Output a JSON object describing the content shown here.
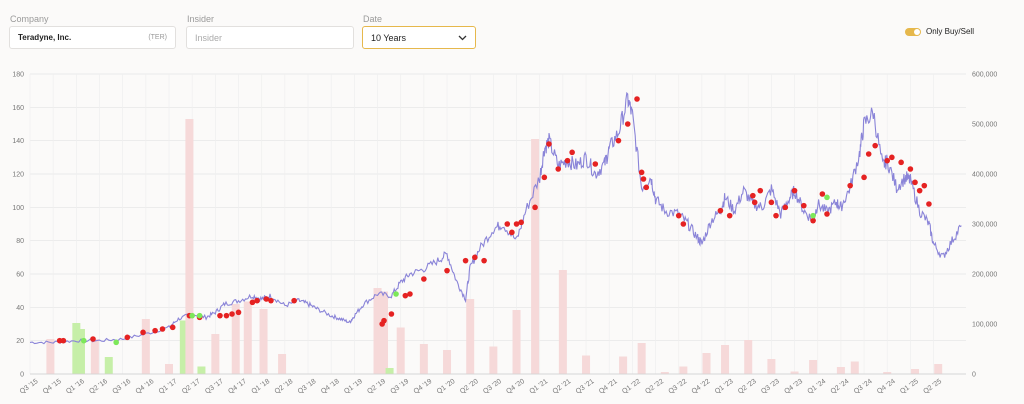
{
  "filters": {
    "company_label": "Company",
    "company_value": "Teradyne, Inc.",
    "company_ticker": "(TER)",
    "insider_label": "Insider",
    "insider_placeholder": "Insider",
    "date_label": "Date",
    "date_value": "10 Years",
    "toggle_label": "Only Buy/Sell",
    "toggle_on": true
  },
  "colors": {
    "price_line": "#8a84d8",
    "sell_marker": "#e52222",
    "buy_marker": "#7de85a",
    "sell_bar": "#f6d9d9",
    "buy_bar": "#c6efa8",
    "accent": "#e6b84c"
  },
  "chart_data": {
    "type": "line",
    "x_ticks": [
      "Q3 '15",
      "Q4 '15",
      "Q1 '16",
      "Q2 '16",
      "Q3 '16",
      "Q4 '16",
      "Q1 '17",
      "Q2 '17",
      "Q3 '17",
      "Q4 '17",
      "Q1 '18",
      "Q2 '18",
      "Q3 '18",
      "Q4 '18",
      "Q1 '19",
      "Q2 '19",
      "Q3 '19",
      "Q4 '19",
      "Q1 '20",
      "Q2 '20",
      "Q3 '20",
      "Q4 '20",
      "Q1 '21",
      "Q2 '21",
      "Q3 '21",
      "Q4 '21",
      "Q1 '22",
      "Q2 '22",
      "Q3 '22",
      "Q4 '22",
      "Q1 '23",
      "Q2 '23",
      "Q3 '23",
      "Q4 '23",
      "Q1 '24",
      "Q2 '24",
      "Q3 '24",
      "Q4 '24",
      "Q1 '25",
      "Q2 '25"
    ],
    "y_left_ticks": [
      0,
      20,
      40,
      60,
      80,
      100,
      120,
      140,
      160,
      180
    ],
    "y_left_range": [
      0,
      180
    ],
    "y_right_ticks": [
      "0",
      "100,000",
      "200,000",
      "300,000",
      "400,000",
      "500,000",
      "600,000"
    ],
    "y_right_range": [
      0,
      600000
    ],
    "grid": true,
    "price_series": {
      "x": [
        2015.5,
        2015.75,
        2016.0,
        2016.25,
        2016.5,
        2016.75,
        2017.0,
        2017.1,
        2017.25,
        2017.4,
        2017.5,
        2017.6,
        2017.75,
        2017.9,
        2018.0,
        2018.1,
        2018.25,
        2018.4,
        2018.5,
        2018.6,
        2018.75,
        2018.85,
        2018.95,
        2019.0,
        2019.1,
        2019.25,
        2019.4,
        2019.5,
        2019.6,
        2019.75,
        2019.9,
        2020.0,
        2020.1,
        2020.2,
        2020.25,
        2020.35,
        2020.5,
        2020.6,
        2020.75,
        2020.85,
        2021.0,
        2021.05,
        2021.1,
        2021.2,
        2021.3,
        2021.4,
        2021.5,
        2021.6,
        2021.7,
        2021.75,
        2021.85,
        2021.95,
        2022.0,
        2022.1,
        2022.2,
        2022.25,
        2022.35,
        2022.5,
        2022.6,
        2022.7,
        2022.75,
        2022.85,
        2022.95,
        2023.0,
        2023.1,
        2023.2,
        2023.3,
        2023.4,
        2023.5,
        2023.6,
        2023.7,
        2023.75,
        2023.85,
        2023.95,
        2024.0,
        2024.1,
        2024.2,
        2024.25,
        2024.35,
        2024.45,
        2024.5,
        2024.6,
        2024.7,
        2024.75,
        2024.85,
        2024.95,
        2025.0,
        2025.1,
        2025.2,
        2025.25,
        2025.35,
        2025.45,
        2025.55
      ],
      "y": [
        19,
        19,
        20,
        20,
        21,
        24,
        28,
        33,
        36,
        34,
        37,
        42,
        44,
        47,
        45,
        47,
        41,
        44,
        42,
        39,
        35,
        33,
        31,
        35,
        42,
        48,
        47,
        55,
        60,
        63,
        68,
        72,
        56,
        45,
        64,
        75,
        87,
        90,
        80,
        98,
        118,
        135,
        140,
        125,
        128,
        125,
        130,
        120,
        126,
        135,
        145,
        165,
        155,
        112,
        118,
        105,
        98,
        96,
        90,
        82,
        78,
        92,
        98,
        106,
        98,
        110,
        102,
        100,
        111,
        96,
        106,
        110,
        98,
        92,
        102,
        97,
        103,
        100,
        112,
        132,
        150,
        157,
        125,
        128,
        112,
        118,
        116,
        98,
        90,
        78,
        70,
        80,
        89
      ]
    },
    "sell_points": {
      "x": [
        2015.82,
        2015.86,
        2016.18,
        2016.55,
        2016.72,
        2016.85,
        2016.93,
        2017.04,
        2017.22,
        2017.33,
        2017.55,
        2017.62,
        2017.68,
        2017.75,
        2017.9,
        2017.95,
        2018.05,
        2018.1,
        2018.35,
        2019.3,
        2019.32,
        2019.4,
        2019.55,
        2019.6,
        2019.75,
        2020.0,
        2020.2,
        2020.3,
        2020.4,
        2020.65,
        2020.7,
        2020.75,
        2020.8,
        2020.95,
        2021.05,
        2021.1,
        2021.2,
        2021.3,
        2021.35,
        2021.6,
        2021.85,
        2021.95,
        2022.05,
        2022.1,
        2022.12,
        2022.15,
        2022.5,
        2022.55,
        2022.95,
        2023.05,
        2023.3,
        2023.32,
        2023.38,
        2023.5,
        2023.55,
        2023.65,
        2023.75,
        2023.85,
        2023.95,
        2024.05,
        2024.1,
        2024.35,
        2024.5,
        2024.55,
        2024.62,
        2024.75,
        2024.8,
        2024.9,
        2025.0,
        2025.05,
        2025.1,
        2025.15,
        2025.2
      ],
      "y": [
        20,
        20,
        21,
        22,
        25,
        26,
        27,
        28,
        35,
        34,
        35,
        35,
        36,
        37,
        43,
        44,
        45,
        44,
        44,
        30,
        32,
        36,
        47,
        48,
        57,
        62,
        68,
        70,
        68,
        90,
        85,
        90,
        91,
        100,
        118,
        138,
        123,
        128,
        133,
        126,
        140,
        150,
        165,
        121,
        117,
        112,
        95,
        90,
        98,
        95,
        107,
        103,
        110,
        103,
        95,
        100,
        110,
        101,
        92,
        108,
        96,
        113,
        118,
        132,
        137,
        128,
        130,
        127,
        123,
        115,
        110,
        113,
        102
      ]
    },
    "buy_points": {
      "x": [
        2016.08,
        2016.43,
        2017.25,
        2017.33,
        2019.45,
        2023.95,
        2024.1
      ],
      "y": [
        20,
        19,
        35,
        35,
        48,
        95,
        106
      ]
    },
    "volume_bars": [
      {
        "x": 2015.72,
        "v": 70000,
        "kind": "sell"
      },
      {
        "x": 2016.0,
        "v": 102000,
        "kind": "buy"
      },
      {
        "x": 2016.05,
        "v": 90000,
        "kind": "buy"
      },
      {
        "x": 2016.2,
        "v": 70000,
        "kind": "sell"
      },
      {
        "x": 2016.35,
        "v": 34000,
        "kind": "buy"
      },
      {
        "x": 2016.75,
        "v": 110000,
        "kind": "sell"
      },
      {
        "x": 2017.0,
        "v": 20000,
        "kind": "sell"
      },
      {
        "x": 2017.16,
        "v": 107000,
        "kind": "buy"
      },
      {
        "x": 2017.22,
        "v": 510000,
        "kind": "sell"
      },
      {
        "x": 2017.35,
        "v": 15000,
        "kind": "buy"
      },
      {
        "x": 2017.5,
        "v": 80000,
        "kind": "sell"
      },
      {
        "x": 2017.72,
        "v": 140000,
        "kind": "sell"
      },
      {
        "x": 2017.85,
        "v": 145000,
        "kind": "sell"
      },
      {
        "x": 2018.02,
        "v": 130000,
        "kind": "sell"
      },
      {
        "x": 2018.22,
        "v": 40000,
        "kind": "sell"
      },
      {
        "x": 2019.25,
        "v": 172000,
        "kind": "sell"
      },
      {
        "x": 2019.32,
        "v": 165000,
        "kind": "sell"
      },
      {
        "x": 2019.38,
        "v": 12000,
        "kind": "buy"
      },
      {
        "x": 2019.5,
        "v": 93000,
        "kind": "sell"
      },
      {
        "x": 2019.75,
        "v": 60000,
        "kind": "sell"
      },
      {
        "x": 2020.0,
        "v": 48000,
        "kind": "sell"
      },
      {
        "x": 2020.25,
        "v": 150000,
        "kind": "sell"
      },
      {
        "x": 2020.5,
        "v": 55000,
        "kind": "sell"
      },
      {
        "x": 2020.75,
        "v": 128000,
        "kind": "sell"
      },
      {
        "x": 2020.95,
        "v": 470000,
        "kind": "sell"
      },
      {
        "x": 2021.25,
        "v": 208000,
        "kind": "sell"
      },
      {
        "x": 2021.5,
        "v": 37000,
        "kind": "sell"
      },
      {
        "x": 2021.9,
        "v": 35000,
        "kind": "sell"
      },
      {
        "x": 2022.1,
        "v": 62000,
        "kind": "sell"
      },
      {
        "x": 2022.35,
        "v": 4000,
        "kind": "sell"
      },
      {
        "x": 2022.55,
        "v": 15000,
        "kind": "sell"
      },
      {
        "x": 2022.8,
        "v": 42000,
        "kind": "sell"
      },
      {
        "x": 2023.0,
        "v": 58000,
        "kind": "sell"
      },
      {
        "x": 2023.25,
        "v": 68000,
        "kind": "sell"
      },
      {
        "x": 2023.5,
        "v": 30000,
        "kind": "sell"
      },
      {
        "x": 2023.75,
        "v": 5000,
        "kind": "sell"
      },
      {
        "x": 2023.95,
        "v": 28000,
        "kind": "sell"
      },
      {
        "x": 2024.25,
        "v": 14000,
        "kind": "sell"
      },
      {
        "x": 2024.4,
        "v": 25000,
        "kind": "sell"
      },
      {
        "x": 2024.75,
        "v": 4000,
        "kind": "sell"
      },
      {
        "x": 2025.05,
        "v": 10000,
        "kind": "sell"
      },
      {
        "x": 2025.3,
        "v": 20000,
        "kind": "sell"
      }
    ],
    "x_domain": [
      2015.5,
      2025.6
    ]
  }
}
